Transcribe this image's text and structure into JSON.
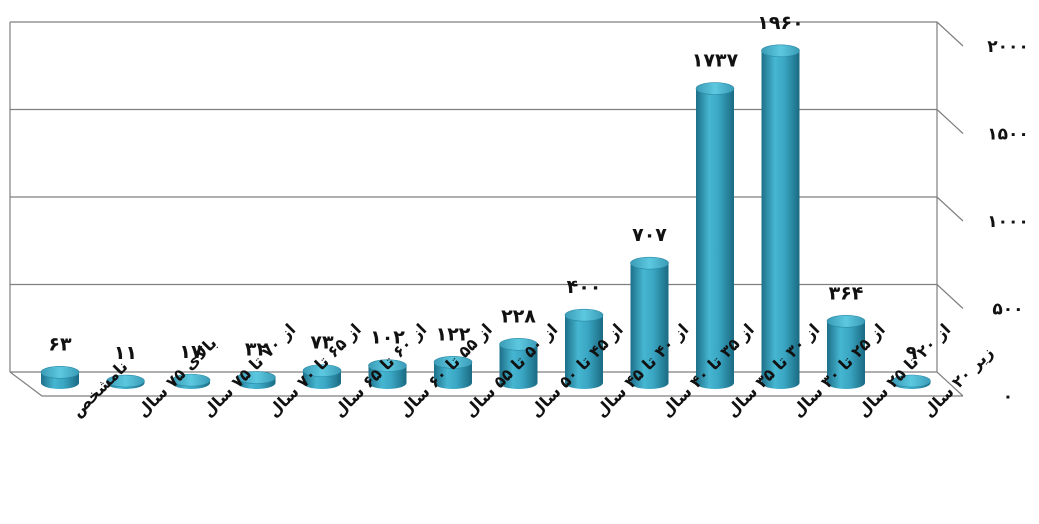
{
  "chart_data": {
    "type": "bar",
    "title": "",
    "xlabel": "",
    "ylabel": "",
    "categories": [
      "نامشخص",
      "بالای ۷۵ سال",
      "از ۷۰ تا ۷۵ سال",
      "از ۶۵ تا ۷۰ سال",
      "از ۶۰ تا ۶۵ سال",
      "از ۵۵ تا ۶۰ سال",
      "از ۵۰ تا ۵۵ سال",
      "از ۴۵ تا ۵۰ سال",
      "از ۴۰ تا ۴۵ سال",
      "از ۳۵ تا ۴۰ سال",
      "از ۳۰ تا ۳۵ سال",
      "از ۲۵ تا ۳۰ سال",
      "از ۲۰ تا ۲۵ سال",
      "زیر ۲۰ سال"
    ],
    "values": [
      63,
      11,
      17,
      32,
      73,
      102,
      122,
      228,
      400,
      707,
      1737,
      1960,
      364,
      9
    ],
    "value_labels": [
      "۶۳",
      "۱۱",
      "۱۷",
      "۳۲",
      "۷۳",
      "۱۰۲",
      "۱۲۲",
      "۲۲۸",
      "۴۰۰",
      "۷۰۷",
      "۱۷۳۷",
      "۱۹۶۰",
      "۳۶۴",
      "۹"
    ],
    "ylim": [
      0,
      2000
    ],
    "yticks": [
      0,
      500,
      1000,
      1500,
      2000
    ],
    "ytick_labels": [
      "۰",
      "۵۰۰",
      "۱۰۰۰",
      "۱۵۰۰",
      "۲۰۰۰"
    ],
    "y_axis_side": "right",
    "grid": true,
    "legend": "none",
    "bar_color": "#3aa6c3",
    "bar_top_color": "#4fc2dc",
    "grid_color": "#7f7f7f"
  }
}
